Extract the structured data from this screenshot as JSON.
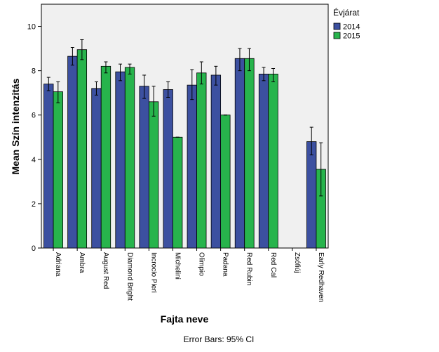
{
  "chart_data": {
    "type": "bar",
    "ylabel": "Mean Szín intenzitás",
    "xlabel": "Fajta neve",
    "footnote": "Error Bars: 95% CI",
    "ylim": [
      0,
      11
    ],
    "yticks": [
      0,
      2,
      4,
      6,
      8,
      10
    ],
    "grid": false,
    "legend_placement": "top-right outside",
    "legend_title": "Évjárat",
    "categories": [
      "Adriana",
      "Ambra",
      "August Red",
      "Diamond Bright",
      "Incrocio Pieri",
      "Michelini",
      "Olimpio",
      "Padana",
      "Red Rubin",
      "Red Cal",
      "Zsófiúj",
      "Early Redhaven"
    ],
    "series": [
      {
        "name": "2014",
        "color": "#3c50a0",
        "values": [
          7.4,
          8.65,
          7.2,
          7.95,
          7.3,
          7.15,
          7.35,
          7.8,
          8.55,
          7.85,
          null,
          4.8
        ],
        "ci_low": [
          7.1,
          8.25,
          6.9,
          7.55,
          6.75,
          6.8,
          6.7,
          7.35,
          8.0,
          7.55,
          null,
          4.2
        ],
        "ci_high": [
          7.7,
          9.05,
          7.5,
          8.3,
          7.8,
          7.5,
          8.05,
          8.2,
          9.0,
          8.15,
          null,
          5.45
        ]
      },
      {
        "name": "2015",
        "color": "#27b44c",
        "values": [
          7.05,
          8.95,
          8.2,
          8.15,
          6.6,
          5.0,
          7.9,
          6.0,
          8.55,
          7.85,
          null,
          3.55
        ],
        "ci_low": [
          6.55,
          8.5,
          7.9,
          7.85,
          5.95,
          5.0,
          7.4,
          6.0,
          8.0,
          7.5,
          null,
          2.35
        ],
        "ci_high": [
          7.5,
          9.4,
          8.4,
          8.3,
          7.3,
          5.0,
          8.4,
          6.0,
          9.0,
          8.1,
          null,
          4.75
        ]
      }
    ]
  }
}
